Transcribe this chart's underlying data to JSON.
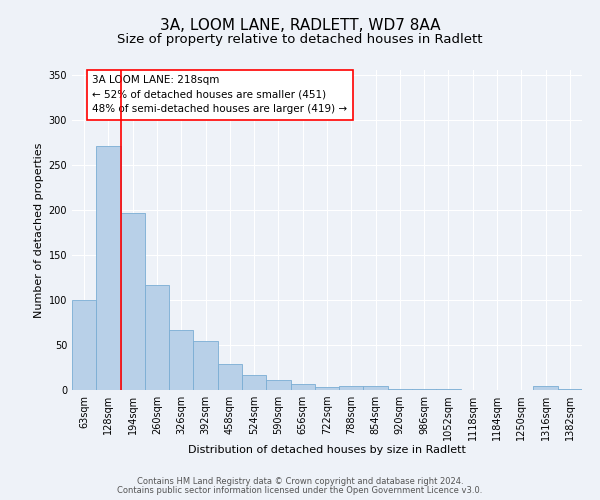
{
  "title": "3A, LOOM LANE, RADLETT, WD7 8AA",
  "subtitle": "Size of property relative to detached houses in Radlett",
  "xlabel": "Distribution of detached houses by size in Radlett",
  "ylabel": "Number of detached properties",
  "categories": [
    "63sqm",
    "128sqm",
    "194sqm",
    "260sqm",
    "326sqm",
    "392sqm",
    "458sqm",
    "524sqm",
    "590sqm",
    "656sqm",
    "722sqm",
    "788sqm",
    "854sqm",
    "920sqm",
    "986sqm",
    "1052sqm",
    "1118sqm",
    "1184sqm",
    "1250sqm",
    "1316sqm",
    "1382sqm"
  ],
  "values": [
    100,
    271,
    196,
    116,
    67,
    54,
    29,
    17,
    11,
    7,
    3,
    4,
    4,
    1,
    1,
    1,
    0,
    0,
    0,
    4,
    1
  ],
  "bar_color": "#b8d0e8",
  "bar_edge_color": "#7aadd4",
  "ylim": [
    0,
    355
  ],
  "yticks": [
    0,
    50,
    100,
    150,
    200,
    250,
    300,
    350
  ],
  "annotation_title": "3A LOOM LANE: 218sqm",
  "annotation_line1": "← 52% of detached houses are smaller (451)",
  "annotation_line2": "48% of semi-detached houses are larger (419) →",
  "footer1": "Contains HM Land Registry data © Crown copyright and database right 2024.",
  "footer2": "Contains public sector information licensed under the Open Government Licence v3.0.",
  "background_color": "#eef2f8",
  "grid_color": "#ffffff",
  "title_fontsize": 11,
  "subtitle_fontsize": 9.5,
  "axis_label_fontsize": 8,
  "tick_fontsize": 7,
  "annotation_fontsize": 7.5,
  "footer_fontsize": 6
}
